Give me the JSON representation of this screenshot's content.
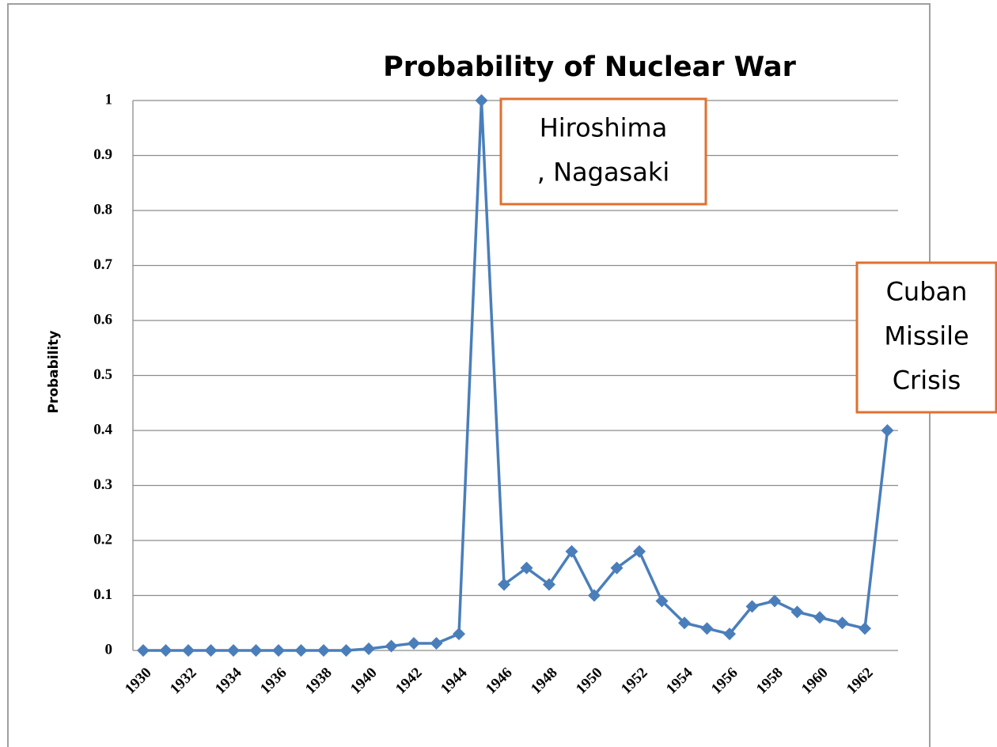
{
  "chart_data": {
    "type": "line",
    "title": "Probability of Nuclear War",
    "ylabel": "Probability",
    "categories": [
      "1930",
      null,
      "1932",
      null,
      "1934",
      null,
      "1936",
      null,
      "1938",
      null,
      "1940",
      null,
      "1942",
      null,
      "1944",
      null,
      "1946",
      null,
      "1948",
      null,
      "1950",
      null,
      "1952",
      null,
      "1954",
      null,
      "1956",
      null,
      "1958",
      null,
      "1960",
      null,
      "1962",
      null
    ],
    "series": [
      {
        "name": "Probability",
        "color": "#4a7ebb",
        "values": [
          0,
          0,
          0,
          0,
          0,
          0,
          0,
          0,
          0,
          0,
          0.003,
          0.008,
          0.013,
          0.013,
          0.03,
          1,
          0.12,
          0.15,
          0.12,
          0.18,
          0.1,
          0.15,
          0.18,
          0.09,
          0.05,
          0.04,
          0.03,
          0.08,
          0.09,
          0.07,
          0.06,
          0.05,
          0.04,
          0.4
        ]
      }
    ],
    "ylim": [
      0,
      1
    ],
    "yticks": [
      0,
      0.1,
      0.2,
      0.3,
      0.4,
      0.5,
      0.6,
      0.7,
      0.8,
      0.9,
      1
    ],
    "grid": true,
    "annotations": [
      {
        "lines": [
          "Hiroshima",
          ", Nagasaki"
        ],
        "color": "#e07030"
      },
      {
        "lines": [
          "Cuban",
          "Missile",
          "Crisis"
        ],
        "color": "#e07030"
      }
    ]
  }
}
